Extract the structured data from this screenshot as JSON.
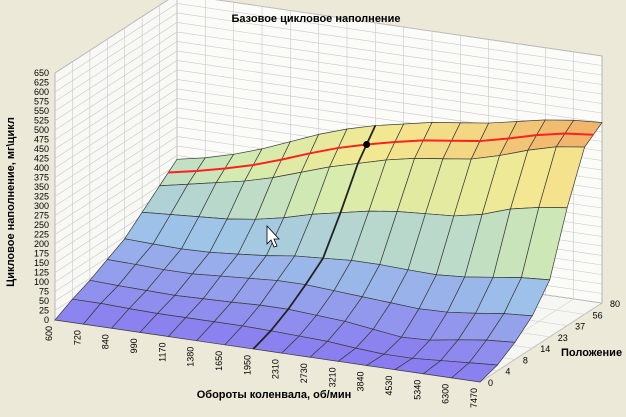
{
  "chart_data": {
    "type": "surface",
    "title": "Базовое цикловое наполнение",
    "xlabel": "Обороты коленвала, об/мин",
    "ylabel": "Положение",
    "zlabel": "Цикловое наполнение, мг\\цикл",
    "x_ticks": [
      "600",
      "720",
      "840",
      "990",
      "1170",
      "1380",
      "1650",
      "1950",
      "2310",
      "2730",
      "3210",
      "3840",
      "4530",
      "5340",
      "6300",
      "7470"
    ],
    "y_ticks": [
      "0",
      "4",
      "8",
      "14",
      "23",
      "37",
      "56",
      "80"
    ],
    "z_ticks": [
      "0",
      "25",
      "50",
      "75",
      "100",
      "125",
      "150",
      "175",
      "200",
      "225",
      "250",
      "275",
      "300",
      "325",
      "350",
      "375",
      "400",
      "425",
      "450",
      "475",
      "500",
      "525",
      "550",
      "575",
      "600",
      "625",
      "650"
    ],
    "zlim": [
      0,
      650
    ],
    "grid": true,
    "colormap": [
      "#8a7cf0",
      "#9ec4e8",
      "#d4ecb0",
      "#f4e890",
      "#f0a860"
    ],
    "values_by_position": {
      "0": [
        0,
        0,
        0,
        0,
        0,
        0,
        0,
        0,
        0,
        0,
        0,
        0,
        0,
        0,
        0,
        0
      ],
      "4": [
        25,
        25,
        22,
        20,
        20,
        20,
        20,
        18,
        15,
        12,
        5,
        0,
        0,
        5,
        10,
        15
      ],
      "8": [
        45,
        42,
        40,
        38,
        40,
        42,
        45,
        45,
        40,
        35,
        25,
        15,
        18,
        30,
        40,
        45
      ],
      "14": [
        70,
        68,
        65,
        65,
        70,
        75,
        80,
        80,
        75,
        70,
        65,
        60,
        62,
        70,
        80,
        85
      ],
      "23": [
        95,
        92,
        90,
        92,
        98,
        105,
        115,
        120,
        125,
        125,
        122,
        120,
        125,
        135,
        145,
        150
      ],
      "37": [
        135,
        140,
        145,
        150,
        160,
        175,
        195,
        210,
        225,
        235,
        240,
        245,
        260,
        285,
        300,
        310
      ],
      "56": [
        175,
        190,
        205,
        220,
        240,
        265,
        290,
        310,
        330,
        345,
        355,
        365,
        385,
        410,
        430,
        440
      ],
      "80": [
        215,
        230,
        250,
        275,
        305,
        335,
        360,
        380,
        395,
        410,
        420,
        430,
        445,
        460,
        470,
        475
      ]
    },
    "highlight": {
      "color": "#ff2020",
      "marker_label": "1950 об/мин"
    }
  }
}
